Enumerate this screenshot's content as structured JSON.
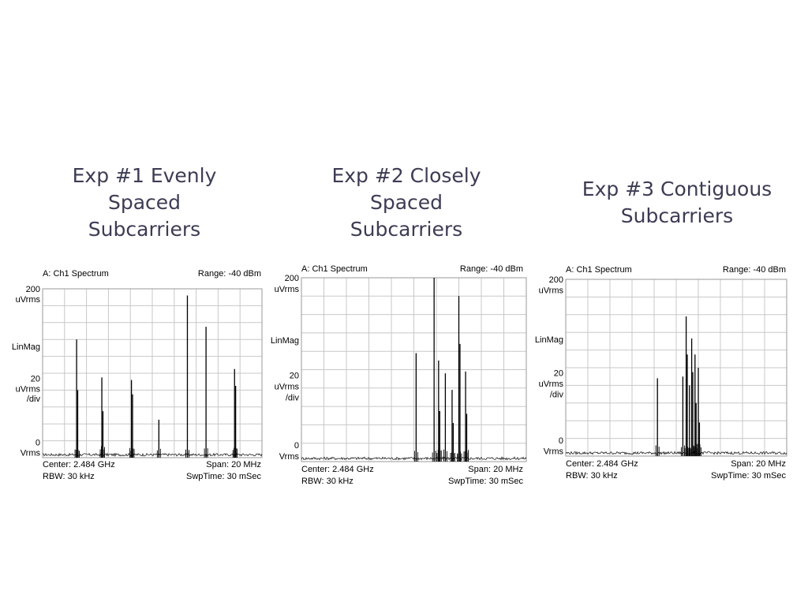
{
  "titles": [
    "Exp #1 Evenly\nSpaced\nSubcarriers",
    "Exp #2 Closely\nSpaced\nSubcarriers",
    "Exp #3 Contiguous\nSubcarriers"
  ],
  "chart_data": [
    {
      "type": "line",
      "title": "A: Ch1 Spectrum",
      "range": "Range: -40 dBm",
      "center": "Center: 2.484 GHz",
      "span": "Span: 20 MHz",
      "rbw": "RBW: 30 kHz",
      "swptime": "SwpTime: 30 mSec",
      "ylabels": [
        "200",
        "uVrms",
        "LinMag",
        "20",
        "uVrms",
        "/div",
        "0",
        "Vrms"
      ],
      "ylim": [
        0,
        200
      ],
      "xlim": [
        0,
        10
      ],
      "grid": true,
      "peaks": [
        {
          "x": 1.55,
          "y": 140
        },
        {
          "x": 1.6,
          "y": 80
        },
        {
          "x": 2.7,
          "y": 95
        },
        {
          "x": 2.75,
          "y": 55
        },
        {
          "x": 4.05,
          "y": 92
        },
        {
          "x": 4.1,
          "y": 75
        },
        {
          "x": 5.3,
          "y": 45
        },
        {
          "x": 6.6,
          "y": 192
        },
        {
          "x": 7.45,
          "y": 155
        },
        {
          "x": 8.75,
          "y": 105
        },
        {
          "x": 8.8,
          "y": 85
        }
      ]
    },
    {
      "type": "line",
      "title": "A: Ch1 Spectrum",
      "range": "Range: -40 dBm",
      "center": "Center: 2.484 GHz",
      "span": "Span: 20 MHz",
      "rbw": "RBW: 30 kHz",
      "swptime": "SwpTime: 30 mSec",
      "ylabels": [
        "200",
        "uVrms",
        "LinMag",
        "20",
        "uVrms",
        "/div",
        "0",
        "Vrms"
      ],
      "ylim": [
        0,
        200
      ],
      "xlim": [
        0,
        10
      ],
      "grid": true,
      "peaks": [
        {
          "x": 5.1,
          "y": 118
        },
        {
          "x": 5.9,
          "y": 225
        },
        {
          "x": 6.1,
          "y": 110
        },
        {
          "x": 6.15,
          "y": 55
        },
        {
          "x": 6.4,
          "y": 96
        },
        {
          "x": 6.7,
          "y": 78
        },
        {
          "x": 6.75,
          "y": 42
        },
        {
          "x": 7.0,
          "y": 180
        },
        {
          "x": 7.05,
          "y": 128
        },
        {
          "x": 7.3,
          "y": 98
        },
        {
          "x": 7.35,
          "y": 52
        }
      ]
    },
    {
      "type": "line",
      "title": "A: Ch1 Spectrum",
      "range": "Range: -40 dBm",
      "center": "Center: 2.484 GHz",
      "span": "Span: 20 MHz",
      "rbw": "RBW: 30 kHz",
      "swptime": "SwpTime: 30 mSec",
      "ylabels": [
        "200",
        "uVrms",
        "LinMag",
        "20",
        "uVrms",
        "/div",
        "0",
        "Vrms"
      ],
      "ylim": [
        0,
        200
      ],
      "xlim": [
        0,
        10
      ],
      "grid": true,
      "peaks": [
        {
          "x": 4.15,
          "y": 88
        },
        {
          "x": 5.3,
          "y": 90
        },
        {
          "x": 5.45,
          "y": 158
        },
        {
          "x": 5.5,
          "y": 115
        },
        {
          "x": 5.6,
          "y": 80
        },
        {
          "x": 5.7,
          "y": 133
        },
        {
          "x": 5.75,
          "y": 95
        },
        {
          "x": 5.85,
          "y": 115
        },
        {
          "x": 5.9,
          "y": 60
        },
        {
          "x": 6.0,
          "y": 100
        },
        {
          "x": 6.05,
          "y": 38
        }
      ]
    }
  ]
}
